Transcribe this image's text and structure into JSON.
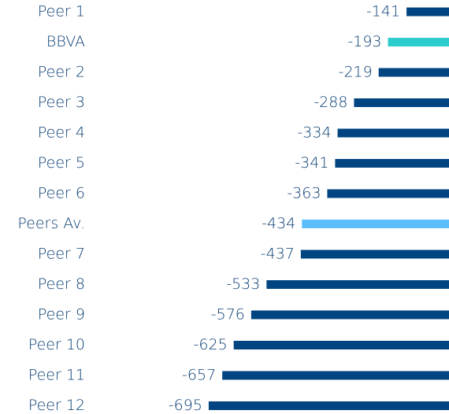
{
  "chart_data": {
    "type": "barh",
    "categories": [
      "Peer 1",
      "BBVA",
      "Peer 2",
      "Peer 3",
      "Peer 4",
      "Peer 5",
      "Peer 6",
      "Peers Av.",
      "Peer 7",
      "Peer 8",
      "Peer 9",
      "Peer 10",
      "Peer 11",
      "Peer 12"
    ],
    "values": [
      -141,
      -193,
      -219,
      -288,
      -334,
      -341,
      -363,
      -434,
      -437,
      -533,
      -576,
      -625,
      -657,
      -695
    ],
    "colors": [
      "#004481",
      "#2dcccd",
      "#004481",
      "#004481",
      "#004481",
      "#004481",
      "#004481",
      "#5bbeff",
      "#004481",
      "#004481",
      "#004481",
      "#004481",
      "#004481",
      "#004481"
    ],
    "xlim": [
      -750,
      0
    ]
  }
}
